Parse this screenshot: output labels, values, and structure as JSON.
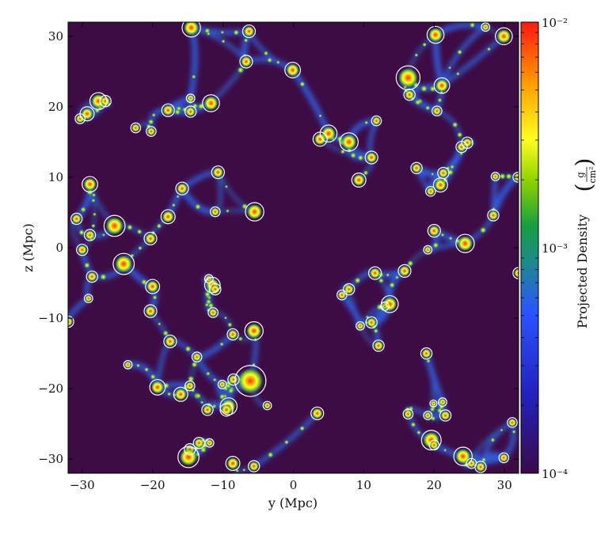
{
  "chart_data": {
    "type": "heatmap",
    "title": "",
    "xlabel": "y  (Mpc)",
    "ylabel": "z  (Mpc)",
    "xlim": [
      -32,
      32
    ],
    "ylim": [
      -32,
      32
    ],
    "x_ticks": [
      -30,
      -20,
      -10,
      0,
      10,
      20,
      30
    ],
    "y_ticks": [
      -30,
      -20,
      -10,
      0,
      10,
      20,
      30
    ],
    "colorbar": {
      "label": "Projected Density",
      "unit_numerator": "g",
      "unit_denominator": "cm²",
      "scale": "log",
      "range": [
        0.0001,
        0.01
      ],
      "tick_labels": [
        "10⁻²",
        "10⁻³",
        "10⁻⁴"
      ],
      "colormap": [
        "#3a0a4a",
        "#2020c8",
        "#2a50ff",
        "#20a040",
        "#9ad800",
        "#ffff20",
        "#ffa000",
        "#ff2010"
      ]
    },
    "background_color": "#3e0c44",
    "halo_circle_color": "#ffffff",
    "halos": [
      {
        "y": -14.5,
        "z": 31.2,
        "r": 1.3
      },
      {
        "y": -6.3,
        "z": 30.7,
        "r": 0.9
      },
      {
        "y": 20.2,
        "z": 30.2,
        "r": 1.2
      },
      {
        "y": 27.3,
        "z": 31.3,
        "r": 0.6
      },
      {
        "y": 29.9,
        "z": 30.0,
        "r": 1.2
      },
      {
        "y": -6.7,
        "z": 26.4,
        "r": 0.9
      },
      {
        "y": -0.1,
        "z": 25.2,
        "r": 1.1
      },
      {
        "y": 16.3,
        "z": 24.1,
        "r": 1.7
      },
      {
        "y": 21.1,
        "z": 23.0,
        "r": 1.1
      },
      {
        "y": 16.5,
        "z": 21.7,
        "r": 0.8
      },
      {
        "y": -14.6,
        "z": 21.2,
        "r": 0.6
      },
      {
        "y": -27.7,
        "z": 20.8,
        "r": 1.2
      },
      {
        "y": -26.7,
        "z": 20.8,
        "r": 0.8
      },
      {
        "y": -11.7,
        "z": 20.5,
        "r": 1.2
      },
      {
        "y": -17.8,
        "z": 19.5,
        "r": 0.9
      },
      {
        "y": -14.6,
        "z": 19.3,
        "r": 0.8
      },
      {
        "y": -29.3,
        "z": 19.0,
        "r": 1.0
      },
      {
        "y": -30.3,
        "z": 18.3,
        "r": 0.7
      },
      {
        "y": 20.4,
        "z": 19.4,
        "r": 0.7
      },
      {
        "y": 11.8,
        "z": 18.0,
        "r": 0.7
      },
      {
        "y": -22.4,
        "z": 17.0,
        "r": 0.7
      },
      {
        "y": -20.2,
        "z": 16.5,
        "r": 0.7
      },
      {
        "y": 5.0,
        "z": 16.2,
        "r": 1.2
      },
      {
        "y": 3.8,
        "z": 15.4,
        "r": 1.0
      },
      {
        "y": 7.9,
        "z": 15.0,
        "r": 1.3
      },
      {
        "y": 23.9,
        "z": 14.3,
        "r": 0.8
      },
      {
        "y": 24.7,
        "z": 14.9,
        "r": 0.8
      },
      {
        "y": 11.1,
        "z": 12.8,
        "r": 0.9
      },
      {
        "y": 17.5,
        "z": 11.3,
        "r": 0.8
      },
      {
        "y": -10.7,
        "z": 10.7,
        "r": 0.9
      },
      {
        "y": 21.3,
        "z": 10.6,
        "r": 0.8
      },
      {
        "y": 28.7,
        "z": 10.1,
        "r": 0.6
      },
      {
        "y": 31.9,
        "z": 10.0,
        "r": 0.7
      },
      {
        "y": -28.9,
        "z": 9.0,
        "r": 1.1
      },
      {
        "y": 9.3,
        "z": 9.6,
        "r": 1.0
      },
      {
        "y": 20.9,
        "z": 8.9,
        "r": 1.0
      },
      {
        "y": -15.8,
        "z": 8.4,
        "r": 0.9
      },
      {
        "y": 19.5,
        "z": 8.0,
        "r": 0.7
      },
      {
        "y": -11.1,
        "z": 5.1,
        "r": 0.7
      },
      {
        "y": -5.5,
        "z": 5.1,
        "r": 1.3
      },
      {
        "y": -30.8,
        "z": 4.1,
        "r": 0.8
      },
      {
        "y": -17.8,
        "z": 4.4,
        "r": 1.0
      },
      {
        "y": 28.4,
        "z": 4.6,
        "r": 0.8
      },
      {
        "y": -25.4,
        "z": 3.1,
        "r": 1.5
      },
      {
        "y": 20.0,
        "z": 2.4,
        "r": 0.9
      },
      {
        "y": -28.9,
        "z": 1.8,
        "r": 0.8
      },
      {
        "y": -20.3,
        "z": 1.3,
        "r": 0.9
      },
      {
        "y": 24.4,
        "z": 0.6,
        "r": 1.3
      },
      {
        "y": -30.0,
        "z": -0.3,
        "r": 0.8
      },
      {
        "y": 19.1,
        "z": -0.3,
        "r": 0.6
      },
      {
        "y": -24.1,
        "z": -2.3,
        "r": 1.5
      },
      {
        "y": 11.6,
        "z": -3.6,
        "r": 0.9
      },
      {
        "y": 15.8,
        "z": -3.3,
        "r": 0.9
      },
      {
        "y": 32.0,
        "z": -3.6,
        "r": 0.8
      },
      {
        "y": -28.6,
        "z": -4.1,
        "r": 0.8
      },
      {
        "y": -12.0,
        "z": -4.4,
        "r": 0.6
      },
      {
        "y": -11.5,
        "z": -5.3,
        "r": 1.1
      },
      {
        "y": -20.0,
        "z": -5.5,
        "r": 1.0
      },
      {
        "y": -11.1,
        "z": -5.9,
        "r": 0.8
      },
      {
        "y": 7.9,
        "z": -5.9,
        "r": 0.8
      },
      {
        "y": 6.9,
        "z": -6.7,
        "r": 0.7
      },
      {
        "y": -29.1,
        "z": -7.2,
        "r": 0.6
      },
      {
        "y": 13.0,
        "z": -8.3,
        "r": 0.6
      },
      {
        "y": 13.7,
        "z": -8.0,
        "r": 1.2
      },
      {
        "y": -20.3,
        "z": -9.0,
        "r": 0.9
      },
      {
        "y": -11.4,
        "z": -9.2,
        "r": 0.7
      },
      {
        "y": -32.0,
        "z": -10.5,
        "r": 0.8
      },
      {
        "y": 11.1,
        "z": -10.6,
        "r": 0.8
      },
      {
        "y": 9.5,
        "z": -11.1,
        "r": 0.6
      },
      {
        "y": -5.6,
        "z": -11.8,
        "r": 1.3
      },
      {
        "y": -8.6,
        "z": -12.3,
        "r": 0.8
      },
      {
        "y": -17.5,
        "z": -13.3,
        "r": 0.9
      },
      {
        "y": 12.1,
        "z": -13.9,
        "r": 0.8
      },
      {
        "y": -13.7,
        "z": -15.5,
        "r": 0.7
      },
      {
        "y": 18.9,
        "z": -15.0,
        "r": 0.8
      },
      {
        "y": -23.5,
        "z": -16.6,
        "r": 0.6
      },
      {
        "y": -6.1,
        "z": -18.9,
        "r": 2.2
      },
      {
        "y": -8.5,
        "z": -18.7,
        "r": 0.8
      },
      {
        "y": -10.1,
        "z": -19.4,
        "r": 0.6
      },
      {
        "y": -19.3,
        "z": -19.8,
        "r": 1.1
      },
      {
        "y": -14.7,
        "z": -19.6,
        "r": 0.7
      },
      {
        "y": -16.0,
        "z": -20.8,
        "r": 1.0
      },
      {
        "y": 19.9,
        "z": -22.1,
        "r": 0.5
      },
      {
        "y": 21.2,
        "z": -21.9,
        "r": 0.6
      },
      {
        "y": -9.2,
        "z": -22.5,
        "r": 1.2
      },
      {
        "y": -9.5,
        "z": -23.0,
        "r": 0.9
      },
      {
        "y": -12.2,
        "z": -23.0,
        "r": 0.8
      },
      {
        "y": -3.7,
        "z": -22.4,
        "r": 0.6
      },
      {
        "y": 3.4,
        "z": -23.5,
        "r": 0.9
      },
      {
        "y": 19.1,
        "z": -23.8,
        "r": 0.6
      },
      {
        "y": 16.3,
        "z": -23.6,
        "r": 0.7
      },
      {
        "y": 21.6,
        "z": -23.8,
        "r": 0.8
      },
      {
        "y": 31.1,
        "z": -24.8,
        "r": 0.7
      },
      {
        "y": 19.6,
        "z": -27.3,
        "r": 1.4
      },
      {
        "y": 20.0,
        "z": -28.0,
        "r": 0.7
      },
      {
        "y": -13.4,
        "z": -27.7,
        "r": 0.8
      },
      {
        "y": -11.9,
        "z": -27.7,
        "r": 0.6
      },
      {
        "y": -14.7,
        "z": -28.6,
        "r": 0.8
      },
      {
        "y": -14.9,
        "z": -29.7,
        "r": 1.5
      },
      {
        "y": 24.1,
        "z": -29.6,
        "r": 1.3
      },
      {
        "y": 25.3,
        "z": -30.6,
        "r": 0.7
      },
      {
        "y": 26.6,
        "z": -31.1,
        "r": 0.8
      },
      {
        "y": 29.9,
        "z": -29.8,
        "r": 0.7
      },
      {
        "y": -8.6,
        "z": -30.6,
        "r": 1.0
      },
      {
        "y": -5.6,
        "z": -31.0,
        "r": 0.8
      }
    ]
  }
}
